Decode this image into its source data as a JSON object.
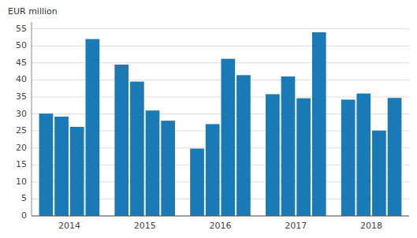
{
  "chart_data": {
    "type": "bar",
    "ylabel": "EUR million",
    "categories": [
      "2014",
      "2015",
      "2016",
      "2017",
      "2018"
    ],
    "series": [
      {
        "values": [
          30.1,
          44.5,
          19.8,
          35.8,
          34.2
        ]
      },
      {
        "values": [
          29.2,
          39.5,
          27.0,
          41.0,
          36.0
        ]
      },
      {
        "values": [
          26.2,
          31.0,
          46.2,
          34.6,
          25.1
        ]
      },
      {
        "values": [
          52.0,
          28.0,
          41.4,
          54.0,
          34.7
        ]
      }
    ],
    "color": "#1a7ab5",
    "ylim": [
      0,
      57
    ],
    "yticks": [
      0,
      5,
      10,
      15,
      20,
      25,
      30,
      35,
      40,
      45,
      50,
      55
    ],
    "grid": true
  }
}
